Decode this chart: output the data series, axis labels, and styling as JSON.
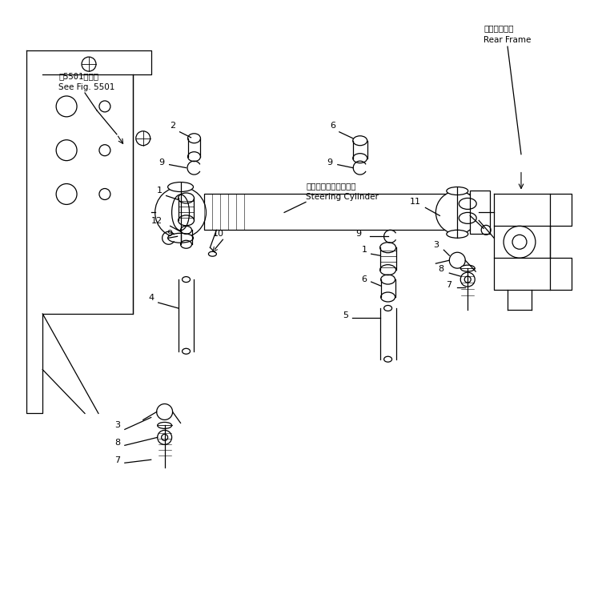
{
  "bg_color": "#ffffff",
  "line_color": "#000000",
  "fig_width": 7.52,
  "fig_height": 7.47,
  "labels": {
    "rear_frame_jp": "リアフレーム",
    "rear_frame_en": "Rear Frame",
    "see_fig_jp": "第5501図参照",
    "see_fig_en": "See Fig. 5501",
    "steering_cylinder_jp": "ステアリングシリンダ",
    "steering_cylinder_en": "Steering Cylinder"
  }
}
